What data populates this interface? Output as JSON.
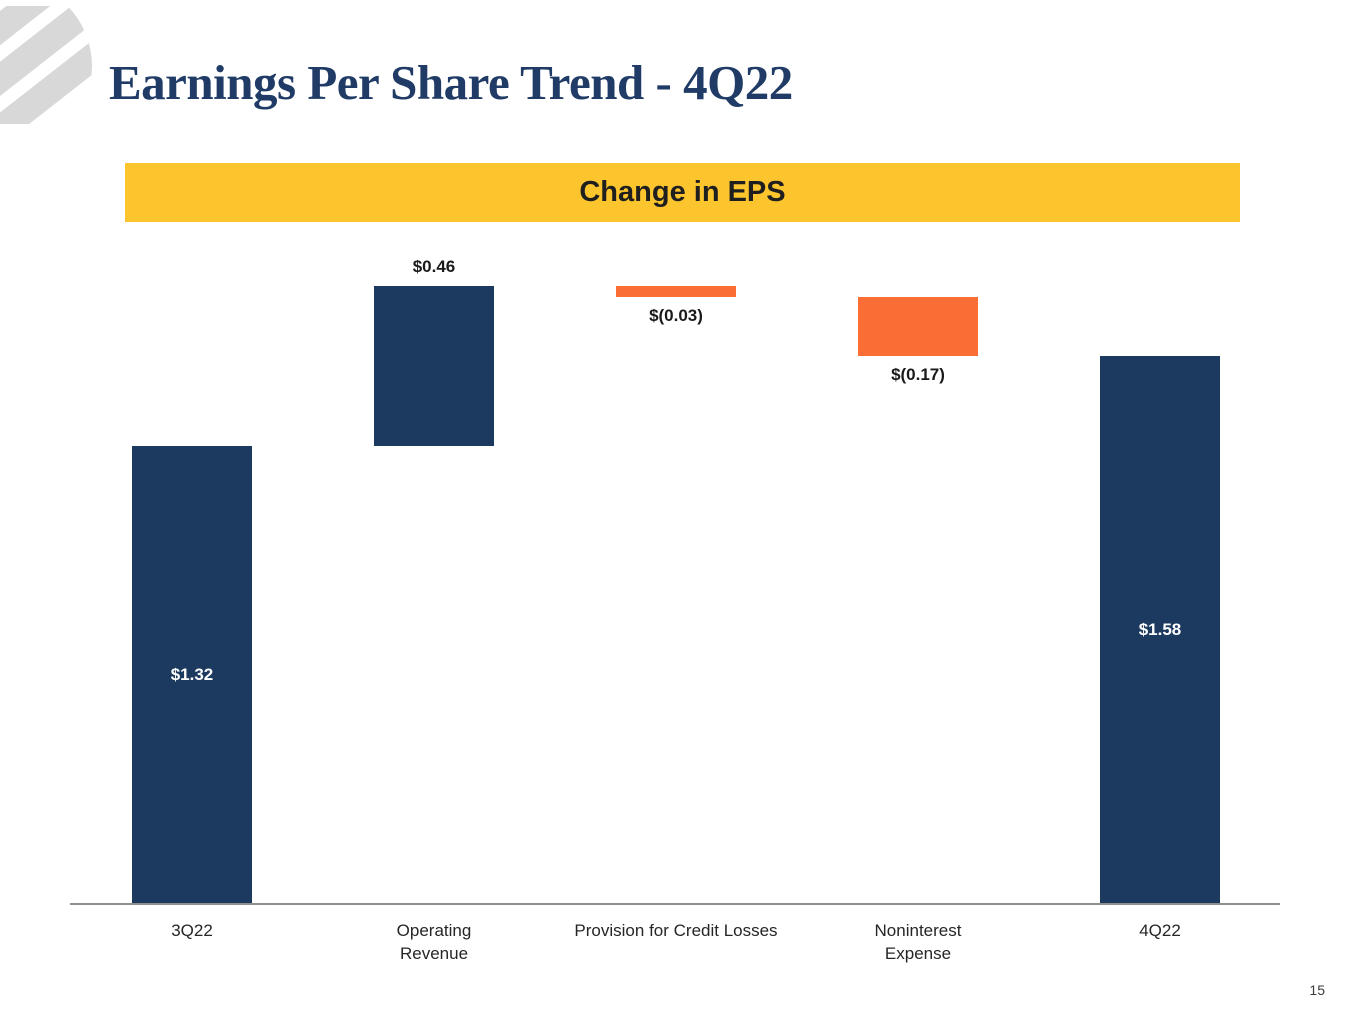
{
  "title": "Earnings Per Share Trend - 4Q22",
  "banner": {
    "label": "Change in EPS",
    "background": "#FCC42D"
  },
  "page_number": "15",
  "logo": {
    "icon": "diagonal-stripes-logo",
    "color": "#D8D8D8"
  },
  "colors": {
    "navy": "#1C3A60",
    "orange": "#FA6D35",
    "banner_yellow": "#FCC42D",
    "title_text": "#1F3B66",
    "axis_gray": "#8F8F8F",
    "label_inside": "#FFFFFF",
    "label_outside": "#1A1A1A"
  },
  "chart_data": {
    "type": "bar",
    "subtype": "waterfall",
    "title": "Change in EPS",
    "xlabel": "",
    "ylabel": "",
    "ylim": [
      0,
      1.9
    ],
    "grid": false,
    "legend": false,
    "categories": [
      "3Q22",
      "Operating\nRevenue",
      "Provision for Credit Losses",
      "Noninterest\nExpense",
      "4Q22"
    ],
    "bars": [
      {
        "category": "3Q22",
        "kind": "total",
        "value": 1.32,
        "label": "$1.32",
        "label_position": "inside",
        "color": "navy"
      },
      {
        "category": "Operating\nRevenue",
        "kind": "delta",
        "value": 0.46,
        "label": "$0.46",
        "label_position": "above",
        "color": "navy"
      },
      {
        "category": "Provision for Credit Losses",
        "kind": "delta",
        "value": -0.03,
        "label": "$(0.03)",
        "label_position": "below",
        "color": "orange"
      },
      {
        "category": "Noninterest\nExpense",
        "kind": "delta",
        "value": -0.17,
        "label": "$(0.17)",
        "label_position": "below",
        "color": "orange"
      },
      {
        "category": "4Q22",
        "kind": "total",
        "value": 1.58,
        "label": "$1.58",
        "label_position": "inside",
        "color": "navy"
      }
    ]
  }
}
